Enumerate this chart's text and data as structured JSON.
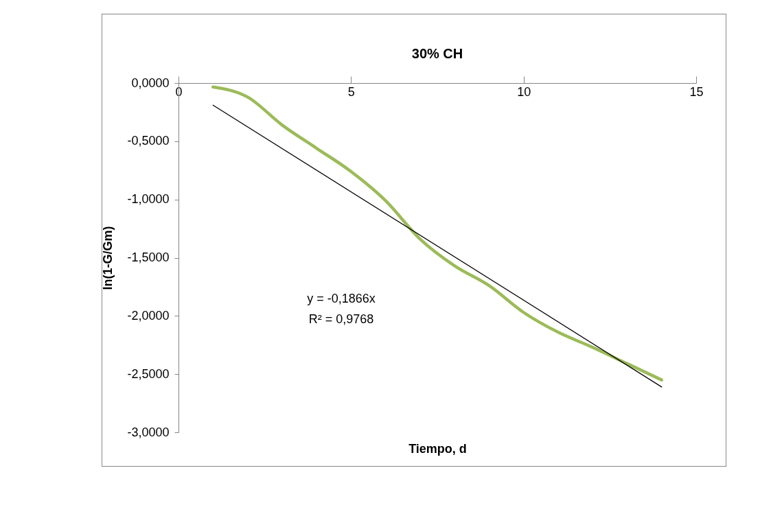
{
  "chart_data": {
    "type": "line",
    "title": "30% CH",
    "xlabel": "Tiempo, d",
    "ylabel": "ln(1-G/Gm)",
    "annotations": [
      "y = -0,1866x",
      "R² = 0,9768"
    ],
    "series": [
      {
        "color": "#9bbb59",
        "x": [
          1,
          2,
          3,
          4,
          5,
          6,
          7,
          8,
          9,
          10,
          11,
          12,
          13,
          14
        ],
        "values": [
          -0.034,
          -0.12,
          -0.36,
          -0.56,
          -0.76,
          -1.01,
          -1.34,
          -1.57,
          -1.74,
          -1.97,
          -2.14,
          -2.27,
          -2.41,
          -2.55
        ]
      },
      {
        "type": "line",
        "color": "#000000",
        "x": [
          1,
          14
        ],
        "values": [
          -0.19,
          -2.61
        ]
      }
    ],
    "xlim": [
      0,
      15
    ],
    "xticks": [
      0,
      5,
      10,
      15
    ],
    "ylim": [
      -3,
      0
    ],
    "yticks": [
      {
        "value": 0,
        "label": "0,0000"
      },
      {
        "value": -0.5,
        "label": "-0,5000"
      },
      {
        "value": -1,
        "label": "-1,0000"
      },
      {
        "value": -1.5,
        "label": "-1,5000"
      },
      {
        "value": -2,
        "label": "-2,0000"
      },
      {
        "value": -2.5,
        "label": "-2,5000"
      },
      {
        "value": -3,
        "label": "-3,0000"
      }
    ],
    "grid": false
  }
}
